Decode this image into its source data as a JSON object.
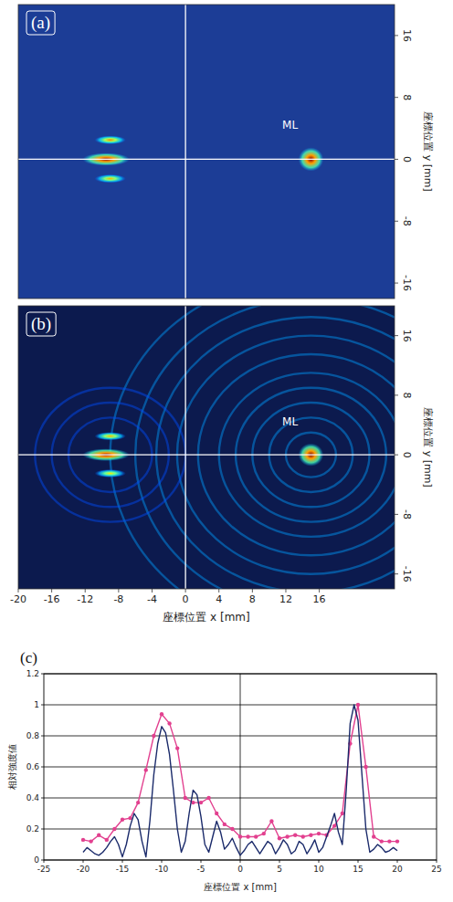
{
  "chart_data": [
    {
      "type": "heatmap",
      "title": "(a)",
      "y_label": "座標位置 y [mm]",
      "xlim": [
        -20,
        25
      ],
      "ylim": [
        -18,
        20
      ],
      "yticks": [
        -16,
        -8,
        0,
        8,
        16
      ],
      "tick_labels": "y",
      "color": "#1c3d96",
      "spots": [
        {
          "x": -9.5,
          "y": 0,
          "width": 4.5,
          "height": 1.2,
          "intensity": 1
        },
        {
          "x": -9,
          "y": 2.5,
          "width": 3,
          "height": 0.8,
          "intensity": 0.75
        },
        {
          "x": -9,
          "y": -2.5,
          "width": 3,
          "height": 0.8,
          "intensity": 0.7
        },
        {
          "x": 15,
          "y": 0,
          "width": 2.4,
          "height": 2.2,
          "intensity": 1
        }
      ],
      "annotations": [
        {
          "text": "ML",
          "x": 12.5,
          "y": 4
        }
      ]
    },
    {
      "type": "heatmap",
      "title": "(b)",
      "x_label": "座標位置 x [mm]",
      "y_label": "座標位置 y [mm]",
      "xlim": [
        -20,
        25
      ],
      "ylim": [
        -18,
        20
      ],
      "xticks": [
        -20,
        -16,
        -12,
        -8,
        -4,
        0,
        4,
        8,
        12,
        16
      ],
      "yticks": [
        -16,
        -8,
        0,
        8,
        16
      ],
      "tick_labels": true,
      "color": "#0c1a4e",
      "rings": [
        {
          "cx": 15,
          "cy": 0,
          "radii": [
            3,
            5,
            7,
            9,
            11,
            13.5,
            16,
            18.5,
            21,
            24
          ],
          "intensity": 0.28
        },
        {
          "cx": -9,
          "cy": 0,
          "radii": [
            5,
            7,
            9
          ],
          "intensity": 0.2
        }
      ],
      "spots": [
        {
          "x": -9.5,
          "y": 0,
          "width": 4.5,
          "height": 1.2,
          "intensity": 1
        },
        {
          "x": -9,
          "y": 2.5,
          "width": 3,
          "height": 0.8,
          "intensity": 0.7
        },
        {
          "x": -9,
          "y": -2.5,
          "width": 3,
          "height": 0.8,
          "intensity": 0.65
        },
        {
          "x": 15,
          "y": 0,
          "width": 2.4,
          "height": 2.2,
          "intensity": 1
        }
      ],
      "annotations": [
        {
          "text": "ML",
          "x": 12.5,
          "y": 4
        }
      ]
    },
    {
      "type": "line",
      "title": "(c)",
      "x_label": "座標位置 x [mm]",
      "y_label": "相対強度値",
      "xlim": [
        -25,
        25
      ],
      "ylim": [
        0,
        1.2
      ],
      "xticks": [
        -25,
        -20,
        -15,
        -10,
        -5,
        0,
        5,
        10,
        15,
        20,
        25
      ],
      "yticks": [
        0,
        0.2,
        0.4,
        0.6,
        0.8,
        1,
        1.2
      ],
      "grid": true,
      "series": [
        {
          "color": "#e2408f",
          "marker": "circle",
          "line_style": "solid",
          "x": [
            -20,
            -19,
            -18,
            -17,
            -16,
            -15,
            -14,
            -13,
            -12,
            -11,
            -10,
            -9,
            -8,
            -7,
            -6,
            -5,
            -4,
            -3,
            -2,
            -1,
            0,
            1,
            2,
            3,
            4,
            5,
            6,
            7,
            8,
            9,
            10,
            11,
            12,
            13,
            14,
            15,
            16,
            17,
            18,
            19,
            20
          ],
          "values": [
            0.13,
            0.12,
            0.16,
            0.13,
            0.2,
            0.26,
            0.27,
            0.37,
            0.58,
            0.8,
            0.94,
            0.88,
            0.72,
            0.4,
            0.37,
            0.37,
            0.4,
            0.3,
            0.23,
            0.2,
            0.15,
            0.15,
            0.15,
            0.17,
            0.25,
            0.14,
            0.15,
            0.16,
            0.15,
            0.16,
            0.17,
            0.16,
            0.22,
            0.3,
            0.75,
            1.0,
            0.6,
            0.15,
            0.12,
            0.12,
            0.12
          ]
        },
        {
          "color": "#1a2a6a",
          "marker": "none",
          "line_style": "solid",
          "x": [
            -20,
            -19.5,
            -19,
            -18.5,
            -18,
            -17.5,
            -17,
            -16.5,
            -16,
            -15.5,
            -15,
            -14.5,
            -14,
            -13.5,
            -13,
            -12.5,
            -12,
            -11.5,
            -11,
            -10.5,
            -10,
            -9.5,
            -9,
            -8.5,
            -8,
            -7.5,
            -7,
            -6.5,
            -6,
            -5.5,
            -5,
            -4.5,
            -4,
            -3.5,
            -3,
            -2.5,
            -2,
            -1.5,
            -1,
            -0.5,
            0,
            0.5,
            1,
            1.5,
            2,
            2.5,
            3,
            3.5,
            4,
            4.5,
            5,
            5.5,
            6,
            6.5,
            7,
            7.5,
            8,
            8.5,
            9,
            9.5,
            10,
            10.5,
            11,
            11.5,
            12,
            12.5,
            13,
            13.5,
            14,
            14.5,
            15,
            15.5,
            16,
            16.5,
            17,
            17.5,
            18,
            18.5,
            19,
            19.5,
            20
          ],
          "values": [
            0.05,
            0.08,
            0.06,
            0.04,
            0.03,
            0.05,
            0.08,
            0.12,
            0.15,
            0.1,
            0.02,
            0.1,
            0.22,
            0.3,
            0.26,
            0.12,
            0.02,
            0.25,
            0.55,
            0.75,
            0.86,
            0.82,
            0.68,
            0.45,
            0.2,
            0.05,
            0.12,
            0.3,
            0.45,
            0.42,
            0.28,
            0.1,
            0.05,
            0.15,
            0.25,
            0.18,
            0.07,
            0.1,
            0.14,
            0.08,
            0.03,
            0.06,
            0.1,
            0.12,
            0.08,
            0.04,
            0.08,
            0.12,
            0.1,
            0.04,
            0.08,
            0.13,
            0.1,
            0.04,
            0.06,
            0.12,
            0.1,
            0.04,
            0.08,
            0.13,
            0.05,
            0.08,
            0.15,
            0.22,
            0.3,
            0.18,
            0.1,
            0.45,
            0.88,
            1.0,
            0.9,
            0.55,
            0.2,
            0.05,
            0.07,
            0.1,
            0.08,
            0.05,
            0.06,
            0.08,
            0.06
          ]
        }
      ]
    }
  ]
}
